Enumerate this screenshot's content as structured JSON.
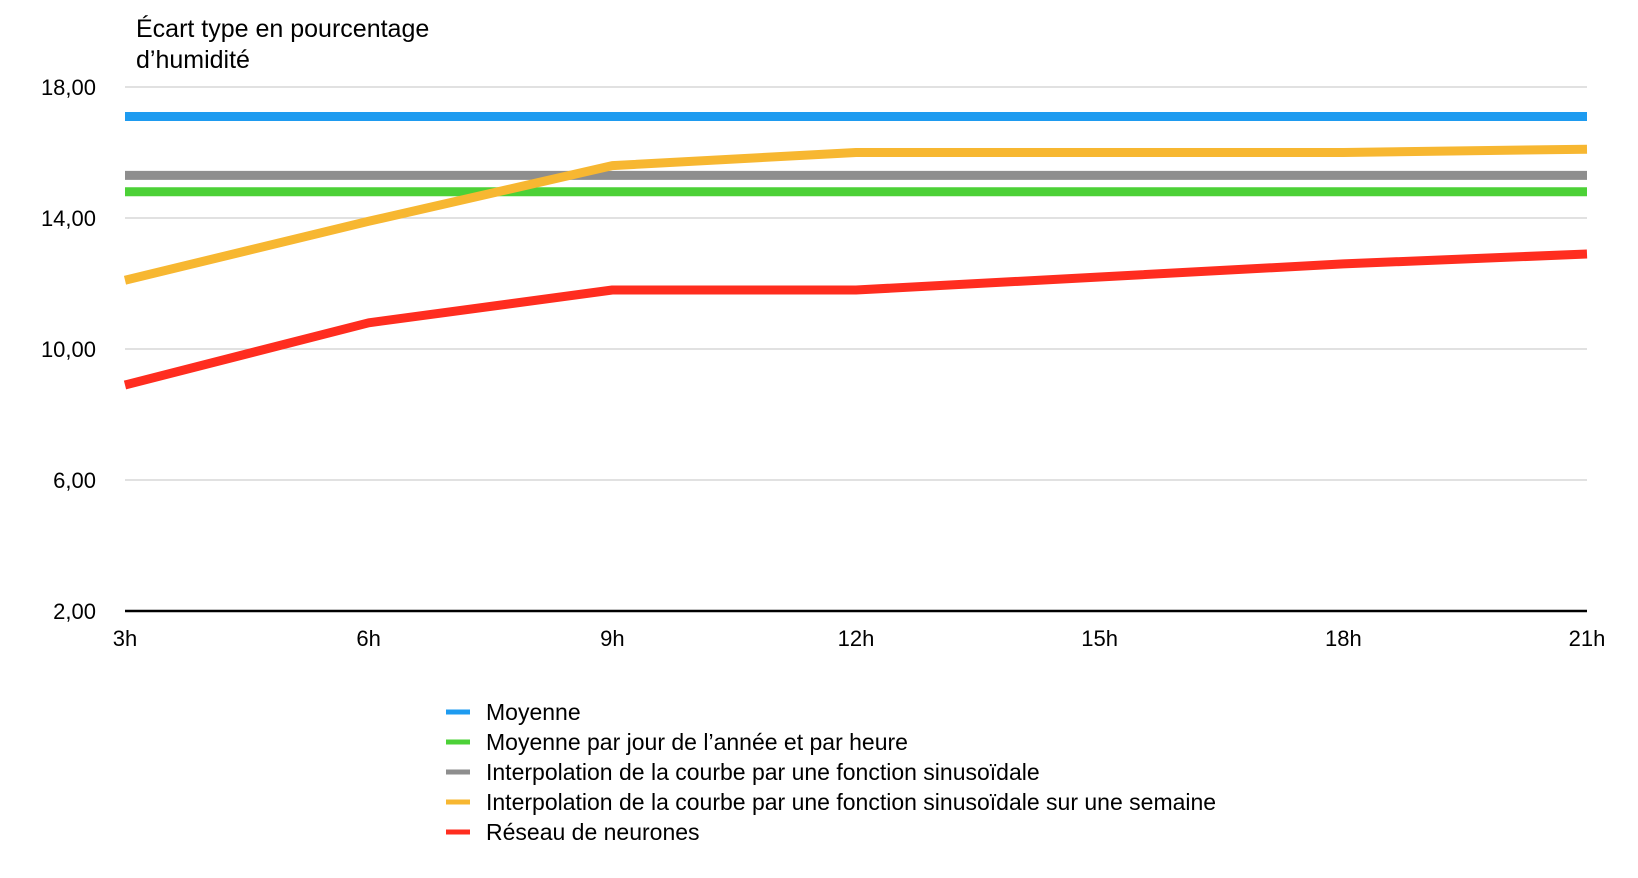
{
  "chart_data": {
    "type": "line",
    "ylabel_lines": [
      "Écart type en pourcentage",
      "d’humidité"
    ],
    "xlabel": "",
    "categories": [
      "3h",
      "6h",
      "9h",
      "12h",
      "15h",
      "18h",
      "21h"
    ],
    "y_ticks": [
      2,
      6,
      10,
      14,
      18
    ],
    "y_tick_labels": [
      "2,00",
      "6,00",
      "10,00",
      "14,00",
      "18,00"
    ],
    "ylim": [
      2,
      18
    ],
    "grid": true,
    "legend_position": "bottom",
    "series": [
      {
        "name": "Moyenne",
        "color": "#1e9bf0",
        "values": [
          17.1,
          17.1,
          17.1,
          17.1,
          17.1,
          17.1,
          17.1
        ]
      },
      {
        "name": "Moyenne par jour de l’année et par heure",
        "color": "#4cd137",
        "values": [
          14.8,
          14.8,
          14.8,
          14.8,
          14.8,
          14.8,
          14.8
        ]
      },
      {
        "name": "Interpolation de la courbe par une fonction sinusoïdale",
        "color": "#8e8e8e",
        "values": [
          15.3,
          15.3,
          15.3,
          15.3,
          15.3,
          15.3,
          15.3
        ]
      },
      {
        "name": "Interpolation de la courbe par une fonction sinusoïdale sur une semaine",
        "color": "#f7b731",
        "values": [
          12.1,
          13.9,
          15.6,
          16.0,
          16.0,
          16.0,
          16.1
        ]
      },
      {
        "name": "Réseau de neurones",
        "color": "#ff2d1f",
        "values": [
          8.9,
          10.8,
          11.8,
          11.8,
          12.2,
          12.6,
          12.9
        ]
      }
    ]
  }
}
